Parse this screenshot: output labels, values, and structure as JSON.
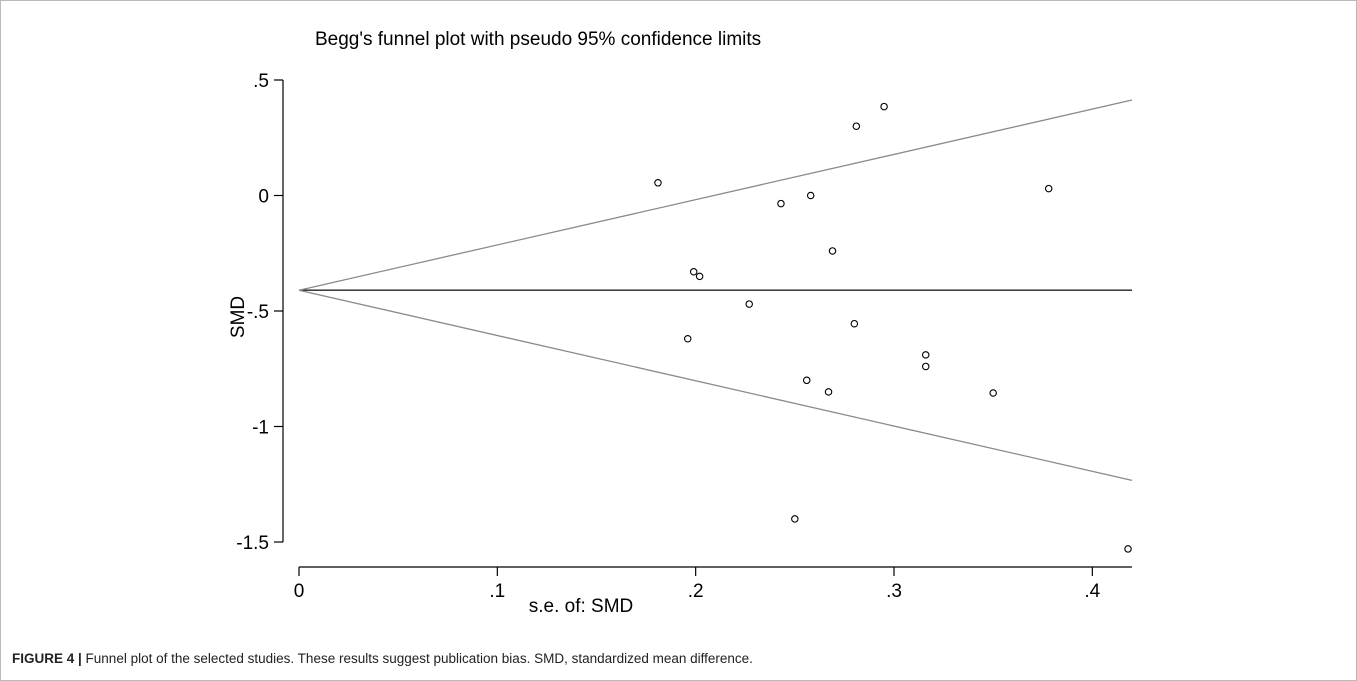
{
  "caption": {
    "label": "FIGURE 4 |",
    "text": " Funnel plot of the selected studies. These results suggest publication bias. SMD, standardized mean difference."
  },
  "chart_data": {
    "type": "scatter",
    "title": "Begg's funnel plot with pseudo 95% confidence limits",
    "xlabel": "s.e. of: SMD",
    "ylabel": "SMD",
    "xlim": [
      0,
      0.42
    ],
    "ylim": [
      -1.5,
      0.5
    ],
    "x_ticks": [
      0,
      0.1,
      0.2,
      0.3,
      0.4
    ],
    "x_tick_labels": [
      "0",
      ".1",
      ".2",
      ".3",
      ".4"
    ],
    "y_ticks": [
      0.5,
      0,
      -0.5,
      -1,
      -1.5
    ],
    "y_tick_labels": [
      ".5",
      "0",
      "-.5",
      "-1",
      "-1.5"
    ],
    "grid": false,
    "pooled_estimate": -0.41,
    "confidence_limit_z": 1.96,
    "points": [
      {
        "x": 0.181,
        "y": 0.055
      },
      {
        "x": 0.196,
        "y": -0.62
      },
      {
        "x": 0.199,
        "y": -0.33
      },
      {
        "x": 0.202,
        "y": -0.35
      },
      {
        "x": 0.227,
        "y": -0.47
      },
      {
        "x": 0.243,
        "y": -0.035
      },
      {
        "x": 0.25,
        "y": -1.4
      },
      {
        "x": 0.256,
        "y": -0.8
      },
      {
        "x": 0.258,
        "y": 0.0
      },
      {
        "x": 0.267,
        "y": -0.85
      },
      {
        "x": 0.269,
        "y": -0.24
      },
      {
        "x": 0.28,
        "y": -0.555
      },
      {
        "x": 0.281,
        "y": 0.3
      },
      {
        "x": 0.295,
        "y": 0.385
      },
      {
        "x": 0.316,
        "y": -0.69
      },
      {
        "x": 0.316,
        "y": -0.74
      },
      {
        "x": 0.35,
        "y": -0.855
      },
      {
        "x": 0.378,
        "y": 0.03
      },
      {
        "x": 0.418,
        "y": -1.53
      }
    ]
  }
}
